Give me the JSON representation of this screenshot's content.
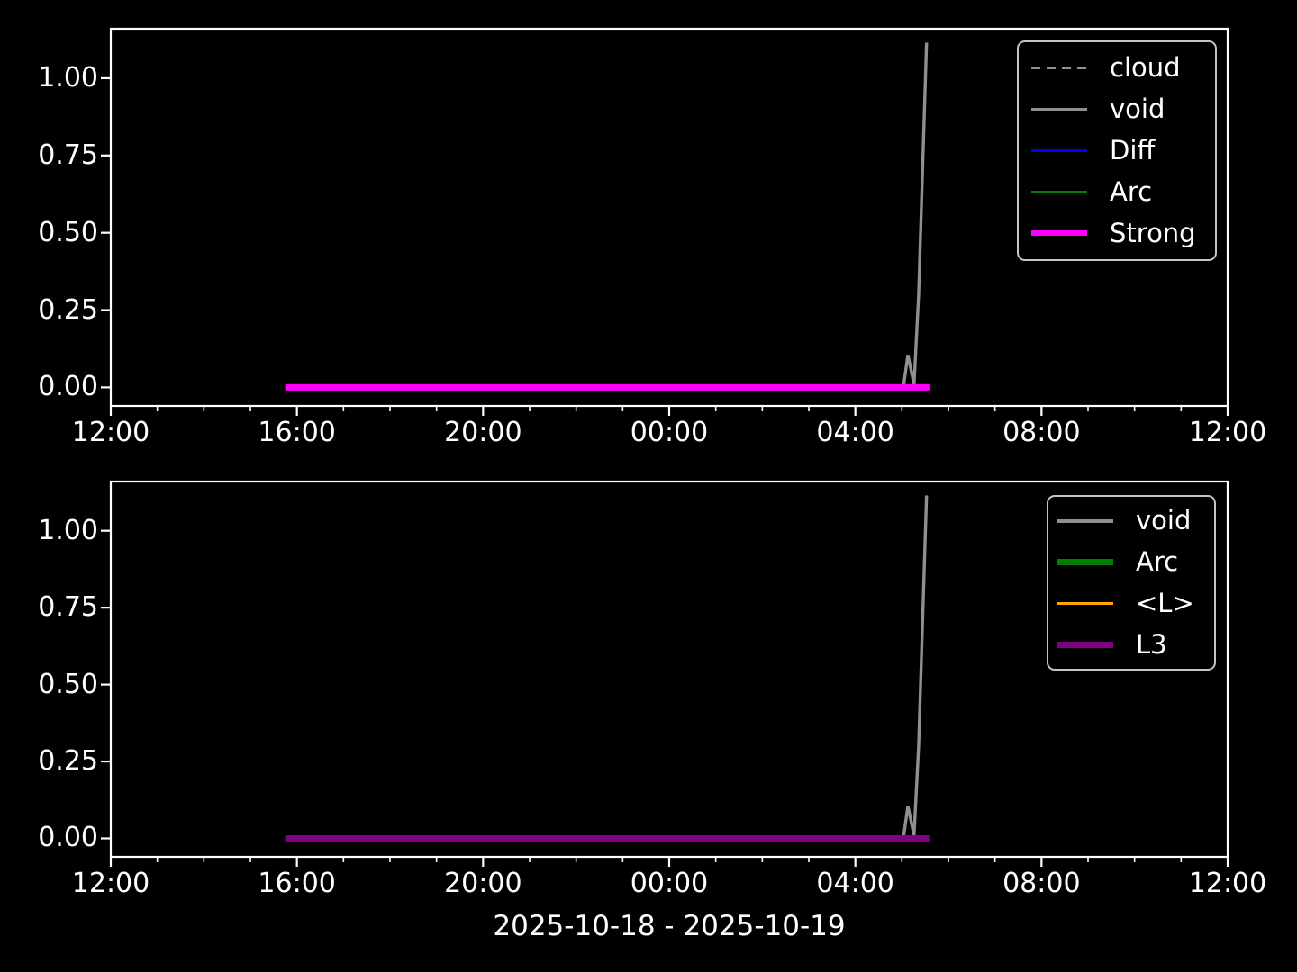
{
  "figure": {
    "background": "#000000",
    "text_color": "#ffffff",
    "axis_color": "#ffffff",
    "xlabel": "2025-10-18 - 2025-10-19"
  },
  "chart_data": [
    {
      "type": "line",
      "title": "",
      "xlabel": "",
      "ylabel": "",
      "grid": false,
      "x_axis": {
        "start_label": "12:00",
        "lim_hours": [
          0,
          24
        ],
        "major_tick_hours": [
          0,
          4,
          8,
          12,
          16,
          20,
          24
        ],
        "major_tick_labels": [
          "12:00",
          "16:00",
          "20:00",
          "00:00",
          "04:00",
          "08:00",
          "12:00"
        ],
        "minor_every_hours": 1
      },
      "y_axis": {
        "lim": [
          -0.06,
          1.16
        ],
        "ticks": [
          0,
          0.25,
          0.5,
          0.75,
          1.0
        ],
        "tick_labels": [
          "0.00",
          "0.25",
          "0.50",
          "0.75",
          "1.00"
        ]
      },
      "legend": {
        "position": "top-right",
        "items": [
          {
            "label": "cloud",
            "color": "#909090",
            "dash": true,
            "lw": 2.8
          },
          {
            "label": "void",
            "color": "#909090",
            "dash": false,
            "lw": 3.6
          },
          {
            "label": "Diff",
            "color": "#0000ff",
            "dash": false,
            "lw": 3.6
          },
          {
            "label": "Arc",
            "color": "#008000",
            "dash": false,
            "lw": 2.8
          },
          {
            "label": "Strong",
            "color": "#ff00ff",
            "dash": false,
            "lw": 6.8
          }
        ]
      },
      "series": [
        {
          "name": "void",
          "color": "#909090",
          "lw": 3.4,
          "points_hours_value": [
            [
              3.75,
              0
            ],
            [
              17.03,
              0
            ],
            [
              17.13,
              0.105
            ],
            [
              17.26,
              0.01
            ],
            [
              17.36,
              0.3
            ],
            [
              17.53,
              1.115
            ]
          ]
        },
        {
          "name": "Strong",
          "color": "#ff00ff",
          "lw": 7,
          "points_hours_value": [
            [
              3.75,
              0
            ],
            [
              17.59,
              0
            ]
          ]
        }
      ]
    },
    {
      "type": "line",
      "title": "",
      "xlabel": "2025-10-18 - 2025-10-19",
      "ylabel": "",
      "grid": false,
      "x_axis": {
        "start_label": "12:00",
        "lim_hours": [
          0,
          24
        ],
        "major_tick_hours": [
          0,
          4,
          8,
          12,
          16,
          20,
          24
        ],
        "major_tick_labels": [
          "12:00",
          "16:00",
          "20:00",
          "00:00",
          "04:00",
          "08:00",
          "12:00"
        ],
        "minor_every_hours": 1
      },
      "y_axis": {
        "lim": [
          -0.06,
          1.16
        ],
        "ticks": [
          0,
          0.25,
          0.5,
          0.75,
          1.0
        ],
        "tick_labels": [
          "0.00",
          "0.25",
          "0.50",
          "0.75",
          "1.00"
        ]
      },
      "legend": {
        "position": "top-right",
        "items": [
          {
            "label": "void",
            "color": "#909090",
            "dash": false,
            "lw": 3.4
          },
          {
            "label": "Arc",
            "color": "#008000",
            "dash": false,
            "lw": 6.8
          },
          {
            "label": "<L>",
            "color": "#ffa500",
            "dash": false,
            "lw": 3.4
          },
          {
            "label": "L3",
            "color": "#800080",
            "dash": false,
            "lw": 6.8
          }
        ]
      },
      "series": [
        {
          "name": "void",
          "color": "#909090",
          "lw": 3.4,
          "points_hours_value": [
            [
              3.75,
              0
            ],
            [
              17.03,
              0
            ],
            [
              17.13,
              0.105
            ],
            [
              17.26,
              0.01
            ],
            [
              17.36,
              0.3
            ],
            [
              17.53,
              1.115
            ]
          ]
        },
        {
          "name": "L3",
          "color": "#800080",
          "lw": 7,
          "points_hours_value": [
            [
              3.75,
              0
            ],
            [
              17.59,
              0
            ]
          ]
        }
      ]
    }
  ]
}
